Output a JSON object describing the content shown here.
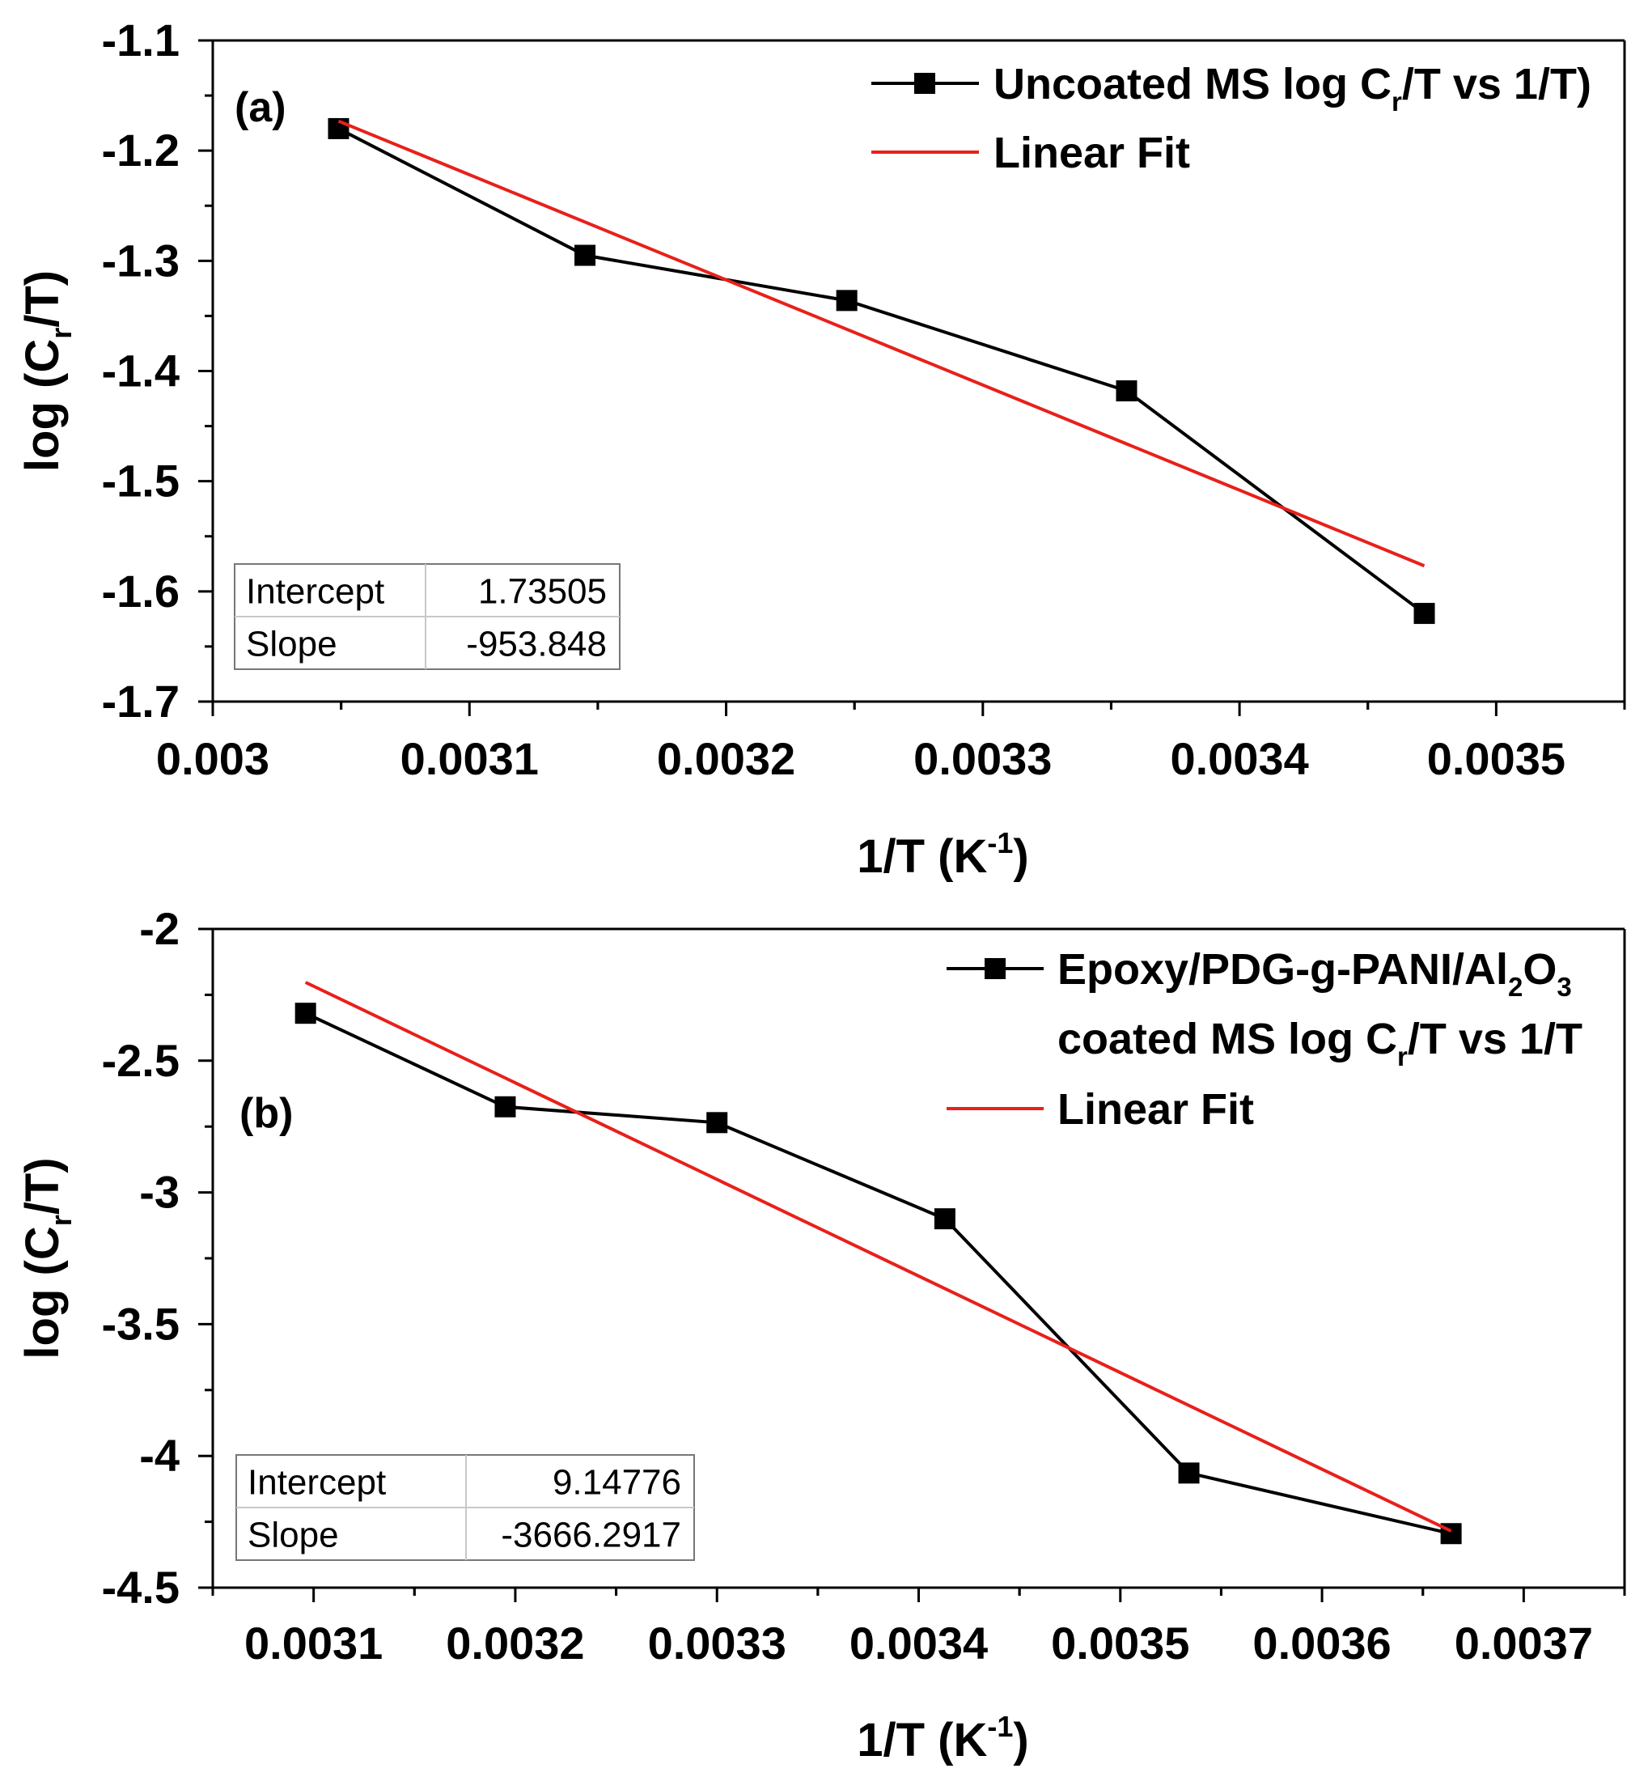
{
  "colors": {
    "data": "#000000",
    "fit": "#e8201b",
    "axis": "#000000",
    "table_border": "#777777"
  },
  "chart_data": [
    {
      "panel": "(a)",
      "type": "line",
      "xlabel": "1/T (K-1)",
      "xlabel_parts": {
        "main": "1/T (K",
        "sup": "-1",
        "close": ")"
      },
      "ylabel": "log (Cr/T)",
      "ylabel_parts": {
        "main": "log (C",
        "sub": "r",
        "rest": "/T)"
      },
      "xlim": [
        0.003,
        0.00355
      ],
      "ylim": [
        -1.7,
        -1.1
      ],
      "xticks": [
        0.003,
        0.0031,
        0.0032,
        0.0033,
        0.0034,
        0.0035
      ],
      "xtick_labels": [
        "0.003",
        "0.0031",
        "0.0032",
        "0.0033",
        "0.0034",
        "0.0035"
      ],
      "yticks": [
        -1.1,
        -1.2,
        -1.3,
        -1.4,
        -1.5,
        -1.6,
        -1.7
      ],
      "ytick_labels": [
        "-1.1",
        "-1.2",
        "-1.3",
        "-1.4",
        "-1.5",
        "-1.6",
        "-1.7"
      ],
      "series": [
        {
          "name": "Uncoated MS log Cr/T vs 1/T)",
          "kind": "line+square",
          "x": [
            0.003049,
            0.003145,
            0.003247,
            0.003356,
            0.003472
          ],
          "y": [
            -1.18,
            -1.295,
            -1.336,
            -1.418,
            -1.62
          ]
        },
        {
          "name": "Linear Fit",
          "kind": "line",
          "x": [
            0.003049,
            0.003472
          ],
          "y": [
            -1.1732,
            -1.5768
          ]
        }
      ],
      "legend": [
        {
          "parts": [
            [
              "Uncoated MS log C",
              ""
            ],
            [
              "r",
              "sub"
            ],
            [
              "/T vs 1/T)",
              ""
            ]
          ],
          "kind": "line+square"
        },
        {
          "parts": [
            [
              "Linear Fit",
              ""
            ]
          ],
          "kind": "line"
        }
      ],
      "stats": {
        "intercept_label": "Intercept",
        "intercept_value": "1.73505",
        "slope_label": "Slope",
        "slope_value": "-953.848"
      }
    },
    {
      "panel": "(b)",
      "type": "line",
      "xlabel": "1/T (K-1)",
      "xlabel_parts": {
        "main": "1/T (K",
        "sup": "-1",
        "close": ")"
      },
      "ylabel": "log (Cr/T)",
      "ylabel_parts": {
        "main": "log (C",
        "sub": "r",
        "rest": "/T)"
      },
      "xlim": [
        0.00305,
        0.00375
      ],
      "ylim": [
        -4.5,
        -2
      ],
      "xticks": [
        0.0031,
        0.0032,
        0.0033,
        0.0034,
        0.0035,
        0.0036,
        0.0037
      ],
      "xtick_labels": [
        "0.0031",
        "0.0032",
        "0.0033",
        "0.0034",
        "0.0035",
        "0.0036",
        "0.0037"
      ],
      "yticks": [
        -2,
        -2.5,
        -3,
        -3.5,
        -4,
        -4.5
      ],
      "ytick_labels": [
        "-2",
        "-2.5",
        "-3",
        "-3.5",
        "-4",
        "-4.5"
      ],
      "series": [
        {
          "name": "Epoxy/PDG-g-PANI/Al2O3 coated MS log Cr/T vs 1/T",
          "kind": "line+square",
          "x": [
            0.003096,
            0.003195,
            0.0033,
            0.003413,
            0.003534,
            0.003664
          ],
          "y": [
            -2.32,
            -2.675,
            -2.735,
            -3.1,
            -4.065,
            -4.295
          ]
        },
        {
          "name": "Linear Fit",
          "kind": "line",
          "x": [
            0.003096,
            0.003664
          ],
          "y": [
            -2.2027,
            -4.2852
          ]
        }
      ],
      "legend": [
        {
          "parts": [
            [
              "Epoxy/PDG-g-PANI/Al",
              ""
            ],
            [
              "2",
              "sub"
            ],
            [
              "O",
              ""
            ],
            [
              "3",
              "sub"
            ]
          ],
          "kind": "line+square"
        },
        {
          "parts": [
            [
              "coated MS log C",
              ""
            ],
            [
              "r",
              "sub"
            ],
            [
              "/T vs 1/T",
              ""
            ]
          ],
          "kind": "none"
        },
        {
          "parts": [
            [
              "Linear Fit",
              ""
            ]
          ],
          "kind": "line"
        }
      ],
      "stats": {
        "intercept_label": "Intercept",
        "intercept_value": "9.14776",
        "slope_label": "Slope",
        "slope_value": "-3666.2917"
      }
    }
  ]
}
